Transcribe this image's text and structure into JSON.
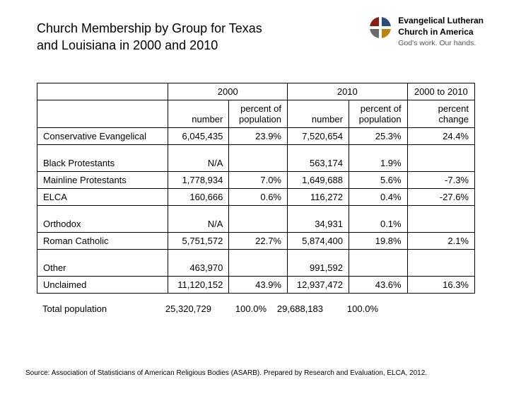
{
  "title_line1": "Church Membership by Group for Texas",
  "title_line2": " and Louisiana in 2000 and 2010",
  "logo": {
    "line1": "Evangelical Lutheran",
    "line2": "Church in America",
    "tagline": "God's work. Our hands."
  },
  "col_headers_top": {
    "y2000": "2000",
    "y2010": "2010",
    "range": "2000 to 2010"
  },
  "col_headers_sub": {
    "number": "number",
    "pct_pop": "percent of population",
    "pct_change": "percent change"
  },
  "rows": [
    {
      "label": "Conservative Evangelical",
      "n2000": "6,045,435",
      "p2000": "23.9%",
      "n2010": "7,520,654",
      "p2010": "25.3%",
      "chg": "24.4%",
      "tall": false
    },
    {
      "label": "Black Protestants",
      "n2000": "N/A",
      "p2000": "",
      "n2010": "563,174",
      "p2010": "1.9%",
      "chg": "",
      "tall": true
    },
    {
      "label": "Mainline Protestants",
      "n2000": "1,778,934",
      "p2000": "7.0%",
      "n2010": "1,649,688",
      "p2010": "5.6%",
      "chg": "-7.3%",
      "tall": false
    },
    {
      "label": "ELCA",
      "n2000": "160,666",
      "p2000": "0.6%",
      "n2010": "116,272",
      "p2010": "0.4%",
      "chg": "-27.6%",
      "tall": false
    },
    {
      "label": "Orthodox",
      "n2000": "N/A",
      "p2000": "",
      "n2010": "34,931",
      "p2010": "0.1%",
      "chg": "",
      "tall": true
    },
    {
      "label": "Roman Catholic",
      "n2000": "5,751,572",
      "p2000": "22.7%",
      "n2010": "5,874,400",
      "p2010": "19.8%",
      "chg": "2.1%",
      "tall": false
    },
    {
      "label": "Other",
      "n2000": "463,970",
      "p2000": "",
      "n2010": "991,592",
      "p2010": "",
      "chg": "",
      "tall": true
    },
    {
      "label": "Unclaimed",
      "n2000": "11,120,152",
      "p2000": "43.9%",
      "n2010": "12,937,472",
      "p2010": "43.6%",
      "chg": "16.3%",
      "tall": false
    }
  ],
  "totals": {
    "label": "Total population",
    "n2000": "25,320,729",
    "p2000": "100.0%",
    "n2010": "29,688,183",
    "p2010": "100.0%"
  },
  "source": "Source:  Association of Statisticians of American Religious Bodies (ASARB).  Prepared by Research and Evaluation, ELCA, 2012."
}
